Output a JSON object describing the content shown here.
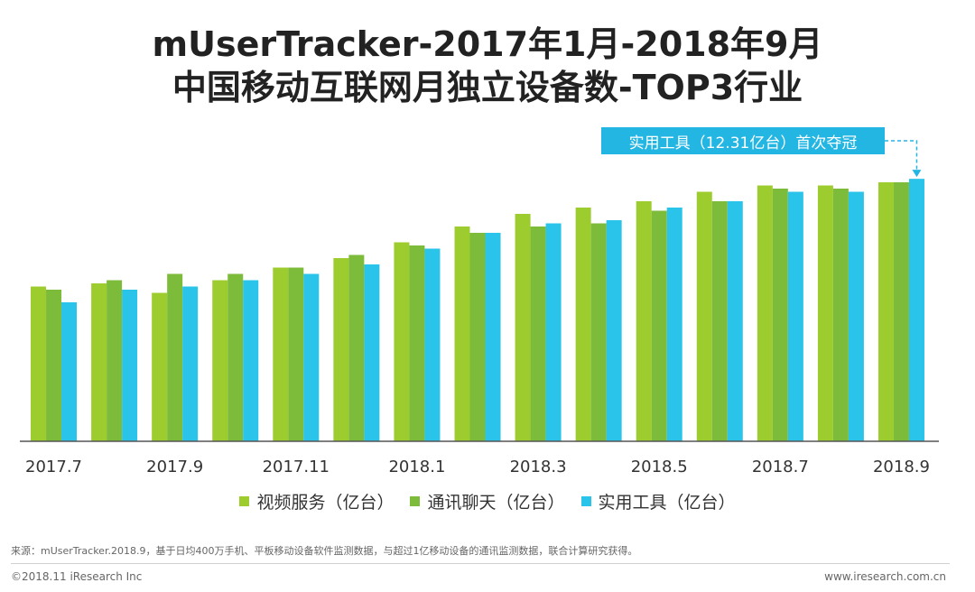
{
  "title": {
    "line1": "mUserTracker-2017年1月-2018年9月",
    "line2": "中国移动互联网月独立设备数-TOP3行业"
  },
  "annotation": "实用工具（12.31亿台）首次夺冠",
  "source": "来源：mUserTracker.2018.9，基于日均400万手机、平板移动设备软件监测数据，与超过1亿移动设备的通讯监测数据，联合计算研究获得。",
  "footer": {
    "copyright": "©2018.11 iResearch Inc",
    "website": "www.iresearch.com.cn"
  },
  "colors": {
    "series1": "#9ccc2e",
    "series2": "#7dbb3a",
    "series3": "#2ac3ea",
    "axis": "#555555"
  },
  "chart_data": {
    "type": "bar",
    "title": "mUserTracker-2017年1月-2018年9月 中国移动互联网月独立设备数-TOP3行业",
    "xlabel": "",
    "ylabel": "",
    "ylim": [
      4,
      13
    ],
    "grid": false,
    "legend": "bottom",
    "categories": [
      "2017.7",
      "2017.8",
      "2017.9",
      "2017.10",
      "2017.11",
      "2017.12",
      "2018.1",
      "2018.2",
      "2018.3",
      "2018.4",
      "2018.5",
      "2018.6",
      "2018.7",
      "2018.8",
      "2018.9"
    ],
    "tick_labels": [
      "2017.7",
      "",
      "2017.9",
      "",
      "2017.11",
      "",
      "2018.1",
      "",
      "2018.3",
      "",
      "2018.5",
      "",
      "2018.7",
      "",
      "2018.9"
    ],
    "series": [
      {
        "name": "视频服务（亿台）",
        "values": [
          8.9,
          9.0,
          8.7,
          9.1,
          9.5,
          9.8,
          10.3,
          10.8,
          11.2,
          11.4,
          11.6,
          11.9,
          12.1,
          12.1,
          12.2
        ]
      },
      {
        "name": "通讯聊天（亿台）",
        "values": [
          8.8,
          9.1,
          9.3,
          9.3,
          9.5,
          9.9,
          10.2,
          10.6,
          10.8,
          10.9,
          11.3,
          11.6,
          12.0,
          12.0,
          12.2
        ]
      },
      {
        "name": "实用工具（亿台）",
        "values": [
          8.4,
          8.8,
          8.9,
          9.1,
          9.3,
          9.6,
          10.1,
          10.6,
          10.9,
          11.0,
          11.4,
          11.6,
          11.9,
          11.9,
          12.31
        ]
      }
    ]
  }
}
